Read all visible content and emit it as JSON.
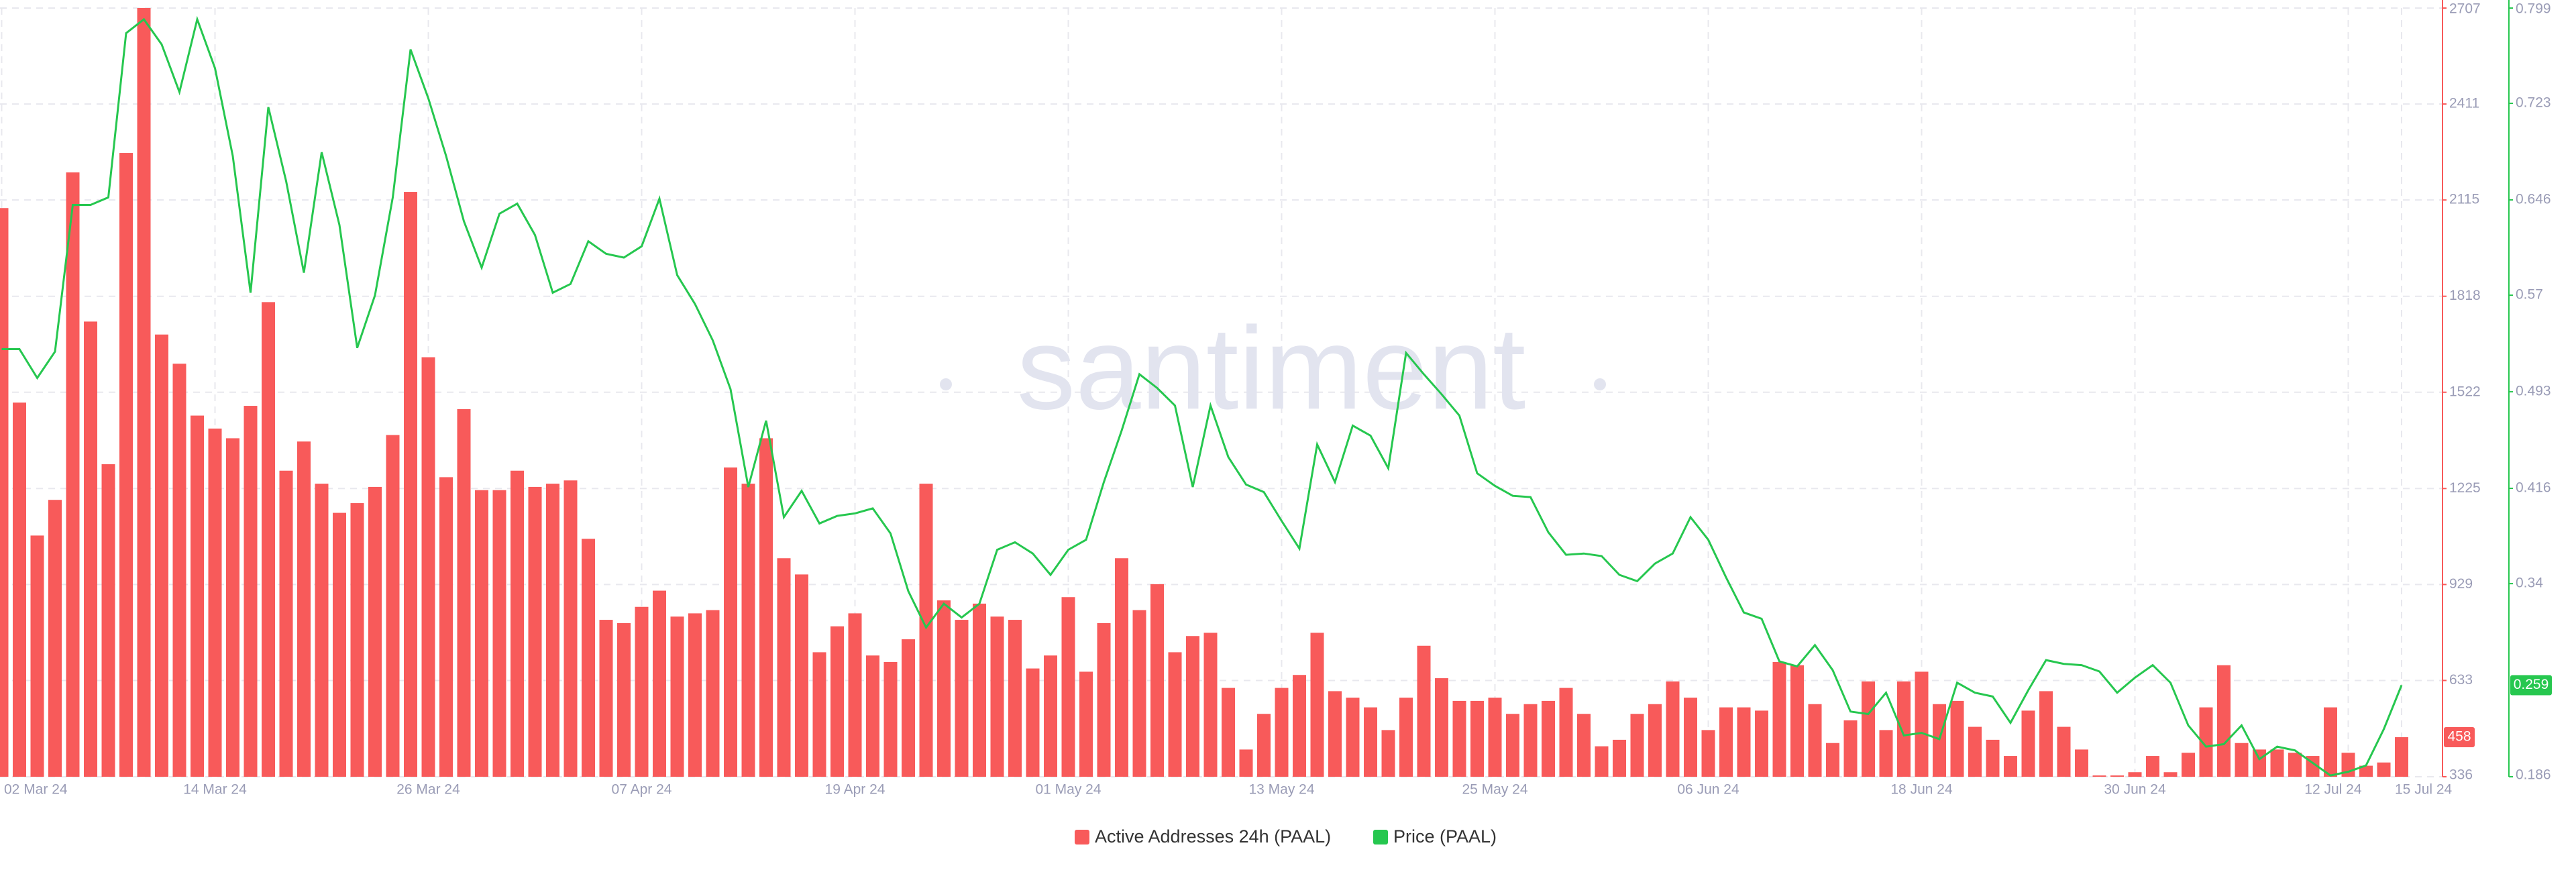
{
  "chart_data": {
    "type": "combo",
    "watermark": "santiment",
    "categories": [
      "02 Mar 24",
      null,
      null,
      null,
      null,
      null,
      null,
      null,
      null,
      null,
      null,
      null,
      "14 Mar 24",
      null,
      null,
      null,
      null,
      null,
      null,
      null,
      null,
      null,
      null,
      null,
      "26 Mar 24",
      null,
      null,
      null,
      null,
      null,
      null,
      null,
      null,
      null,
      null,
      null,
      "07 Apr 24",
      null,
      null,
      null,
      null,
      null,
      null,
      null,
      null,
      null,
      null,
      null,
      "19 Apr 24",
      null,
      null,
      null,
      null,
      null,
      null,
      null,
      null,
      null,
      null,
      null,
      "01 May 24",
      null,
      null,
      null,
      null,
      null,
      null,
      null,
      null,
      null,
      null,
      null,
      "13 May 24",
      null,
      null,
      null,
      null,
      null,
      null,
      null,
      null,
      null,
      null,
      null,
      "25 May 24",
      null,
      null,
      null,
      null,
      null,
      null,
      null,
      null,
      null,
      null,
      null,
      "06 Jun 24",
      null,
      null,
      null,
      null,
      null,
      null,
      null,
      null,
      null,
      null,
      null,
      "18 Jun 24",
      null,
      null,
      null,
      null,
      null,
      null,
      null,
      null,
      null,
      null,
      null,
      "30 Jun 24",
      null,
      null,
      null,
      null,
      null,
      null,
      null,
      null,
      null,
      null,
      null,
      "12 Jul 24",
      null,
      null,
      "15 Jul 24"
    ],
    "series": [
      {
        "name": "Active Addresses 24h (PAAL)",
        "type": "bar",
        "color": "#f85a5a",
        "values": [
          2090,
          1490,
          1080,
          1190,
          2200,
          1740,
          1300,
          2260,
          2707,
          1700,
          1610,
          1450,
          1410,
          1380,
          1480,
          1800,
          1280,
          1370,
          1240,
          1150,
          1180,
          1230,
          1390,
          2140,
          1630,
          1260,
          1470,
          1220,
          1220,
          1280,
          1230,
          1240,
          1250,
          1070,
          820,
          810,
          860,
          910,
          830,
          840,
          850,
          1290,
          1240,
          1380,
          1010,
          960,
          720,
          800,
          840,
          710,
          690,
          760,
          1240,
          880,
          820,
          870,
          830,
          820,
          670,
          710,
          890,
          660,
          810,
          1010,
          850,
          930,
          720,
          770,
          780,
          610,
          420,
          530,
          610,
          650,
          780,
          600,
          580,
          550,
          480,
          580,
          740,
          640,
          570,
          570,
          580,
          530,
          560,
          570,
          610,
          530,
          430,
          450,
          530,
          560,
          630,
          580,
          480,
          550,
          550,
          540,
          690,
          680,
          560,
          440,
          510,
          630,
          480,
          630,
          660,
          560,
          570,
          490,
          450,
          400,
          540,
          600,
          490,
          420,
          340,
          340,
          350,
          400,
          350,
          410,
          550,
          680,
          440,
          420,
          420,
          410,
          400,
          550,
          410,
          370,
          380,
          458
        ]
      },
      {
        "name": "Price (PAAL)",
        "type": "line",
        "axis": "y2",
        "color": "#26c74f",
        "values": [
          0.527,
          0.527,
          0.504,
          0.525,
          0.642,
          0.642,
          0.648,
          0.779,
          0.79,
          0.77,
          0.732,
          0.79,
          0.751,
          0.681,
          0.572,
          0.72,
          0.661,
          0.588,
          0.684,
          0.626,
          0.528,
          0.57,
          0.648,
          0.766,
          0.727,
          0.681,
          0.629,
          0.592,
          0.635,
          0.643,
          0.618,
          0.572,
          0.579,
          0.613,
          0.603,
          0.6,
          0.609,
          0.647,
          0.586,
          0.563,
          0.534,
          0.495,
          0.417,
          0.47,
          0.393,
          0.414,
          0.388,
          0.394,
          0.396,
          0.4,
          0.38,
          0.334,
          0.305,
          0.324,
          0.313,
          0.324,
          0.367,
          0.373,
          0.364,
          0.347,
          0.367,
          0.375,
          0.421,
          0.462,
          0.507,
          0.496,
          0.482,
          0.417,
          0.482,
          0.441,
          0.419,
          0.413,
          0.39,
          0.368,
          0.451,
          0.421,
          0.466,
          0.458,
          0.432,
          0.524,
          0.507,
          0.491,
          0.474,
          0.428,
          0.418,
          0.41,
          0.409,
          0.381,
          0.363,
          0.364,
          0.362,
          0.347,
          0.342,
          0.356,
          0.364,
          0.393,
          0.375,
          0.345,
          0.317,
          0.312,
          0.278,
          0.274,
          0.291,
          0.271,
          0.238,
          0.236,
          0.253,
          0.219,
          0.221,
          0.216,
          0.261,
          0.253,
          0.25,
          0.229,
          0.255,
          0.279,
          0.276,
          0.275,
          0.27,
          0.253,
          0.265,
          0.275,
          0.261,
          0.227,
          0.21,
          0.212,
          0.227,
          0.2,
          0.21,
          0.207,
          0.197,
          0.187,
          0.19,
          0.195,
          0.224,
          0.259
        ]
      }
    ],
    "ylim": [
      336,
      2707
    ],
    "yticks": [
      336,
      633,
      929,
      1225,
      1522,
      1818,
      2115,
      2411,
      2707
    ],
    "y2lim": [
      0.186,
      0.799
    ],
    "y2ticks": [
      0.186,
      0.34,
      0.416,
      0.493,
      0.57,
      0.646,
      0.723,
      0.799
    ],
    "grid": true
  }
}
